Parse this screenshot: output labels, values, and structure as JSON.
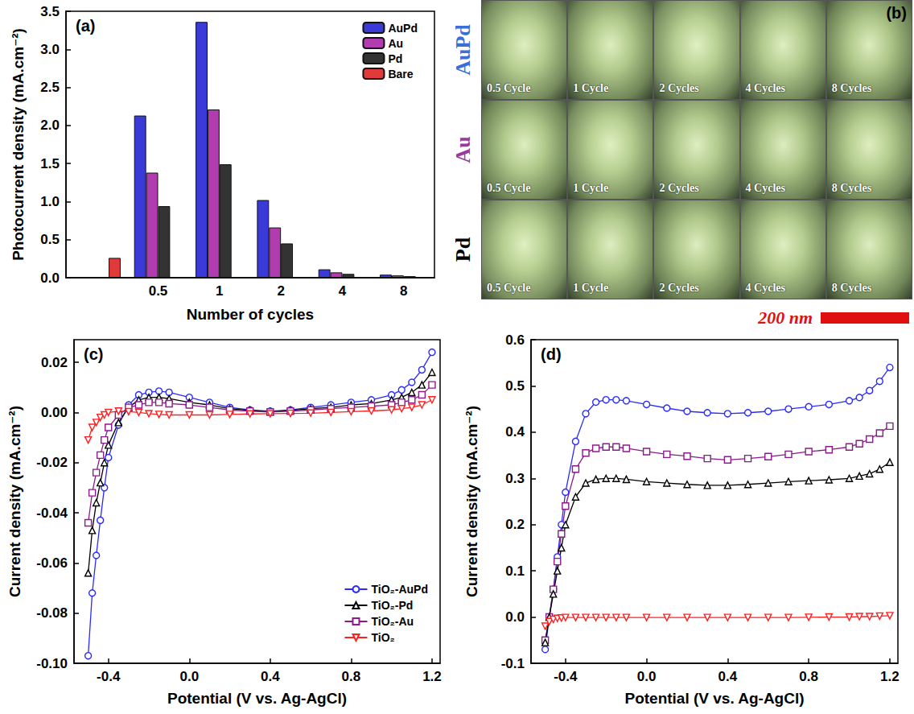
{
  "chart_data": [
    {
      "type": "bar",
      "title": "(a)",
      "x_label": "Number of cycles",
      "y_label": "Photocurrent density (mA.cm⁻²)",
      "categories": [
        null,
        "0.5",
        "1",
        "2",
        "4",
        "8"
      ],
      "series": [
        {
          "name": "AuPd",
          "color": "#3a3ad8",
          "values": [
            null,
            2.13,
            3.36,
            1.02,
            0.11,
            0.04
          ]
        },
        {
          "name": "Au",
          "color": "#b03cb0",
          "values": [
            null,
            1.38,
            2.21,
            0.66,
            0.07,
            0.03
          ]
        },
        {
          "name": "Pd",
          "color": "#333333",
          "values": [
            null,
            0.94,
            1.49,
            0.45,
            0.05,
            0.02
          ]
        },
        {
          "name": "Bare",
          "color": "#e03a3a",
          "values": [
            0.26,
            null,
            null,
            null,
            null,
            null
          ]
        }
      ],
      "ylim": [
        0,
        3.5
      ],
      "yticks": [
        {
          "value": 0,
          "label": "0.0"
        },
        0.5,
        {
          "value": 1,
          "label": "1.0"
        },
        1.5,
        {
          "value": 2,
          "label": "2.0"
        },
        2.5,
        {
          "value": 3,
          "label": "3.0"
        },
        3.5
      ],
      "grid": false,
      "legend": "upper right"
    },
    {
      "type": "image_grid",
      "title": "(b)",
      "rows": [
        {
          "name": "AuPd",
          "color": "#3a6fd8"
        },
        {
          "name": "Au",
          "color": "#9a3aa0"
        },
        {
          "name": "Pd",
          "color": "#000000"
        }
      ],
      "columns": [
        "0.5 Cycle",
        "1 Cycle",
        "2 Cycles",
        "4 Cycles",
        "8 Cycles"
      ],
      "scale_bar": "200 nm"
    },
    {
      "type": "line",
      "title": "(c)",
      "x_label": "Potential (V vs. Ag-AgCl)",
      "y_label": "Current density (mA.cm⁻²)",
      "x": [
        -0.5,
        -0.48,
        -0.46,
        -0.44,
        -0.42,
        -0.4,
        -0.35,
        -0.3,
        -0.25,
        -0.2,
        -0.15,
        -0.1,
        0,
        0.1,
        0.2,
        0.3,
        0.4,
        0.5,
        0.6,
        0.7,
        0.8,
        0.9,
        1.0,
        1.05,
        1.1,
        1.15,
        1.2
      ],
      "series": [
        {
          "name": "TiO₂-AuPd",
          "color": "#2a2aff",
          "marker": "circle",
          "values": [
            -0.097,
            -0.072,
            -0.057,
            -0.043,
            -0.03,
            -0.018,
            -0.005,
            0.003,
            0.007,
            0.008,
            0.0085,
            0.008,
            0.006,
            0.004,
            0.002,
            0.001,
            0.0005,
            0.001,
            0.002,
            0.003,
            0.004,
            0.005,
            0.007,
            0.009,
            0.012,
            0.017,
            0.024
          ]
        },
        {
          "name": "TiO₂-Pd",
          "color": "#000000",
          "marker": "triangle",
          "values": [
            -0.064,
            -0.047,
            -0.036,
            -0.028,
            -0.02,
            -0.013,
            -0.004,
            0.002,
            0.005,
            0.006,
            0.006,
            0.0055,
            0.004,
            0.003,
            0.0015,
            0.0008,
            0.0003,
            0.0008,
            0.0015,
            0.002,
            0.003,
            0.0035,
            0.005,
            0.006,
            0.008,
            0.011,
            0.016
          ]
        },
        {
          "name": "TiO₂-Au",
          "color": "#8b1a8b",
          "marker": "square",
          "values": [
            -0.044,
            -0.032,
            -0.024,
            -0.017,
            -0.011,
            -0.006,
            -0.001,
            0.002,
            0.003,
            0.004,
            0.004,
            0.0035,
            0.003,
            0.002,
            0.001,
            0.0005,
            0.0002,
            0.0005,
            0.001,
            0.0015,
            0.002,
            0.0025,
            0.003,
            0.004,
            0.005,
            0.007,
            0.011
          ]
        },
        {
          "name": "TiO₂",
          "color": "#ff2020",
          "marker": "triangle-down",
          "values": [
            -0.011,
            -0.006,
            -0.004,
            -0.002,
            -0.001,
            0,
            0.0005,
            0.0003,
            0,
            -0.0005,
            -0.0008,
            -0.001,
            -0.001,
            -0.001,
            -0.0008,
            -0.0006,
            -0.0005,
            -0.0004,
            -0.0003,
            0,
            0.0003,
            0.0006,
            0.001,
            0.0015,
            0.002,
            0.003,
            0.005
          ]
        }
      ],
      "xlim": [
        -0.57,
        1.24
      ],
      "xticks": [
        -0.4,
        {
          "value": 0,
          "label": "0.0"
        },
        0.4,
        0.8,
        1.2
      ],
      "ylim": [
        -0.1,
        0.029
      ],
      "yticks": [
        {
          "value": -0.1,
          "label": "-0.10"
        },
        -0.08,
        -0.06,
        -0.04,
        -0.02,
        {
          "value": 0,
          "label": "0.00"
        },
        0.02
      ],
      "grid": false,
      "legend": "lower right"
    },
    {
      "type": "line",
      "title": "(d)",
      "x_label": "Potential (V vs. Ag-AgCl)",
      "y_label": "Current density (mA.cm⁻²)",
      "x": [
        -0.5,
        -0.48,
        -0.46,
        -0.44,
        -0.42,
        -0.4,
        -0.35,
        -0.3,
        -0.25,
        -0.2,
        -0.15,
        -0.1,
        0,
        0.1,
        0.2,
        0.3,
        0.4,
        0.5,
        0.6,
        0.7,
        0.8,
        0.9,
        1.0,
        1.05,
        1.1,
        1.15,
        1.2
      ],
      "series": [
        {
          "color": "#2a2aff",
          "marker": "circle",
          "values": [
            -0.07,
            0.0,
            0.06,
            0.13,
            0.2,
            0.27,
            0.38,
            0.44,
            0.465,
            0.47,
            0.47,
            0.468,
            0.46,
            0.452,
            0.445,
            0.442,
            0.44,
            0.442,
            0.445,
            0.45,
            0.455,
            0.46,
            0.468,
            0.475,
            0.49,
            0.51,
            0.54
          ]
        },
        {
          "color": "#8b1a8b",
          "marker": "square",
          "values": [
            -0.05,
            0.0,
            0.06,
            0.12,
            0.18,
            0.24,
            0.32,
            0.355,
            0.365,
            0.368,
            0.368,
            0.365,
            0.358,
            0.352,
            0.348,
            0.343,
            0.34,
            0.343,
            0.347,
            0.352,
            0.358,
            0.362,
            0.368,
            0.375,
            0.385,
            0.398,
            0.413
          ]
        },
        {
          "color": "#000000",
          "marker": "triangle",
          "values": [
            -0.055,
            0.0,
            0.05,
            0.1,
            0.15,
            0.2,
            0.26,
            0.29,
            0.298,
            0.3,
            0.3,
            0.298,
            0.293,
            0.29,
            0.287,
            0.285,
            0.285,
            0.287,
            0.29,
            0.293,
            0.295,
            0.297,
            0.3,
            0.305,
            0.31,
            0.32,
            0.335
          ]
        },
        {
          "color": "#ff2020",
          "marker": "triangle-down",
          "values": [
            -0.02,
            -0.01,
            -0.005,
            -0.003,
            -0.002,
            -0.001,
            -0.001,
            -0.001,
            -0.001,
            -0.001,
            -0.001,
            -0.001,
            -0.001,
            -0.001,
            -0.001,
            -0.001,
            -0.001,
            -0.001,
            -0.001,
            -0.001,
            -0.0005,
            0,
            0,
            0.001,
            0.001,
            0.002,
            0.003
          ]
        }
      ],
      "xlim": [
        -0.57,
        1.24
      ],
      "xticks": [
        -0.4,
        {
          "value": 0,
          "label": "0.0"
        },
        0.4,
        0.8,
        1.2
      ],
      "ylim": [
        -0.1,
        0.6
      ],
      "yticks": [
        -0.1,
        {
          "value": 0,
          "label": "0.0"
        },
        0.1,
        0.2,
        0.3,
        0.4,
        0.5,
        0.6
      ],
      "grid": false
    }
  ]
}
